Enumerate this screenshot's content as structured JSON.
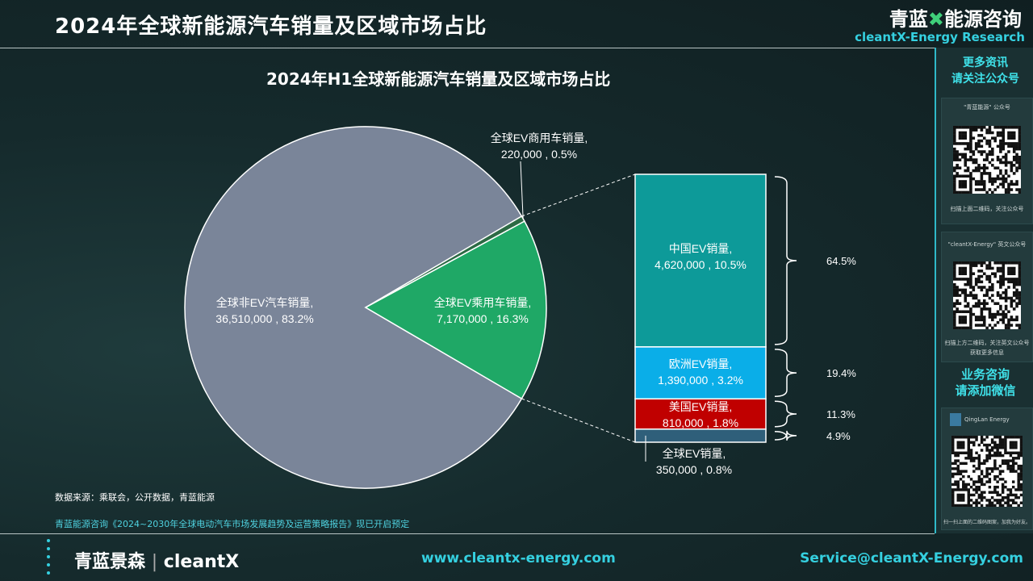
{
  "header": {
    "title": "2024年全球新能源汽车销量及区域市场占比",
    "brand_cn_a": "青蓝",
    "brand_cn_x": "✖",
    "brand_cn_b": "能源咨询",
    "brand_en": "cleantX-Energy Research"
  },
  "sidebar": {
    "more_info": "更多资讯",
    "follow": "请关注公众号",
    "qr1_caption": "\"青蓝能源\" 公众号",
    "qr1_note": "扫描上面二维码，关注公众号",
    "qr2_caption": "\"cleantX-Energy\" 英文公众号",
    "qr2_note": "扫描上方二维码，关注英文公众号",
    "qr2_note2": "获取更多信息",
    "consult": "业务咨询",
    "add_wechat": "请添加微信",
    "wechat_name": "QingLan Energy",
    "wechat_note": "扫一扫上面的二维码图案，加我为好友。"
  },
  "chart_data": {
    "type": "pie",
    "title": "2024年H1全球新能源汽车销量及区域市场占比",
    "pie": [
      {
        "name": "全球非EV汽车销量",
        "value": 36510000,
        "value_label": "36,510,000",
        "pct": "83.2%",
        "color": "#7a8599"
      },
      {
        "name": "全球EV乘用车销量",
        "value": 7170000,
        "value_label": "7,170,000",
        "pct": "16.3%",
        "color": "#1fa866"
      },
      {
        "name": "全球EV商用车销量",
        "value": 220000,
        "value_label": "220,000",
        "pct": "0.5%",
        "color": "#2c6a44"
      }
    ],
    "breakdown": [
      {
        "name": "中国EV销量",
        "value": 4620000,
        "value_label": "4,620,000",
        "pct": "10.5%",
        "share": "64.5%",
        "color": "#0d9a99"
      },
      {
        "name": "欧洲EV销量",
        "value": 1390000,
        "value_label": "1,390,000",
        "pct": "3.2%",
        "share": "19.4%",
        "color": "#0aaee8"
      },
      {
        "name": "美国EV销量",
        "value": 810000,
        "value_label": "810,000",
        "pct": "1.8%",
        "share": "11.3%",
        "color": "#c00000"
      },
      {
        "name": "全球EV销量",
        "value": 350000,
        "value_label": "350,000",
        "pct": "0.8%",
        "share": "4.9%",
        "color": "#2f5f7a"
      }
    ],
    "label_sep": ",",
    "background": "#132628"
  },
  "footer": {
    "source": "数据来源：乘联会，公开数据，青蓝能源",
    "promo": "青蓝能源咨询《2024~2030年全球电动汽车市场发展趋势及运营策略报告》现已开启预定",
    "logo_cn": "青蓝景森",
    "logo_sep": "|",
    "logo_en": "cleantX",
    "website": "www.cleantx-energy.com",
    "email": "Service@cleantX-Energy.com"
  }
}
